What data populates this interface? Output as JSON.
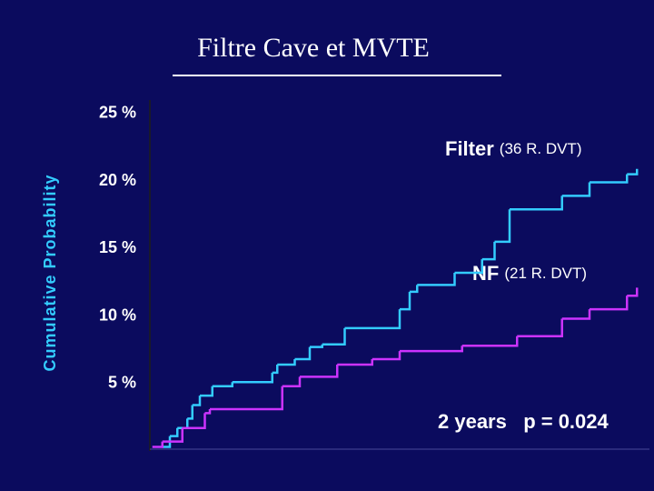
{
  "chart_data": {
    "type": "step",
    "title": "Filtre Cave et MVTE",
    "y_label": "Cumulative Probability",
    "xlim": [
      0,
      2
    ],
    "ylim": [
      0,
      26
    ],
    "yticks": [
      {
        "value": 5,
        "label": "5 %"
      },
      {
        "value": 10,
        "label": "10 %"
      },
      {
        "value": 15,
        "label": "15 %"
      },
      {
        "value": 20,
        "label": "20 %"
      },
      {
        "value": 25,
        "label": "25 %"
      }
    ],
    "series": [
      {
        "name": "Filter",
        "note": "(36 R. DVT)",
        "color": "#33ccff",
        "x": [
          0.05,
          0.08,
          0.11,
          0.15,
          0.17,
          0.2,
          0.25,
          0.33,
          0.49,
          0.51,
          0.58,
          0.64,
          0.69,
          0.78,
          1.0,
          1.04,
          1.07,
          1.22,
          1.33,
          1.38,
          1.44,
          1.65,
          1.76,
          1.91,
          1.95
        ],
        "values": [
          0.3,
          1.1,
          1.7,
          2.4,
          3.4,
          4.1,
          4.8,
          5.1,
          5.8,
          6.4,
          6.8,
          7.7,
          7.9,
          9.1,
          10.5,
          11.8,
          12.3,
          13.2,
          14.2,
          15.5,
          17.9,
          18.9,
          19.9,
          20.5,
          20.9
        ]
      },
      {
        "name": "NF",
        "note": "(21 R. DVT)",
        "color": "#cc33ff",
        "x": [
          0.01,
          0.05,
          0.13,
          0.22,
          0.24,
          0.53,
          0.6,
          0.75,
          0.89,
          1.0,
          1.25,
          1.47,
          1.65,
          1.76,
          1.91,
          1.95
        ],
        "values": [
          0.3,
          0.7,
          1.7,
          2.8,
          3.1,
          4.8,
          5.5,
          6.4,
          6.8,
          7.4,
          7.8,
          8.5,
          9.8,
          10.5,
          11.5,
          12.1
        ]
      }
    ],
    "annotation": "2 years   p = 0.024"
  }
}
